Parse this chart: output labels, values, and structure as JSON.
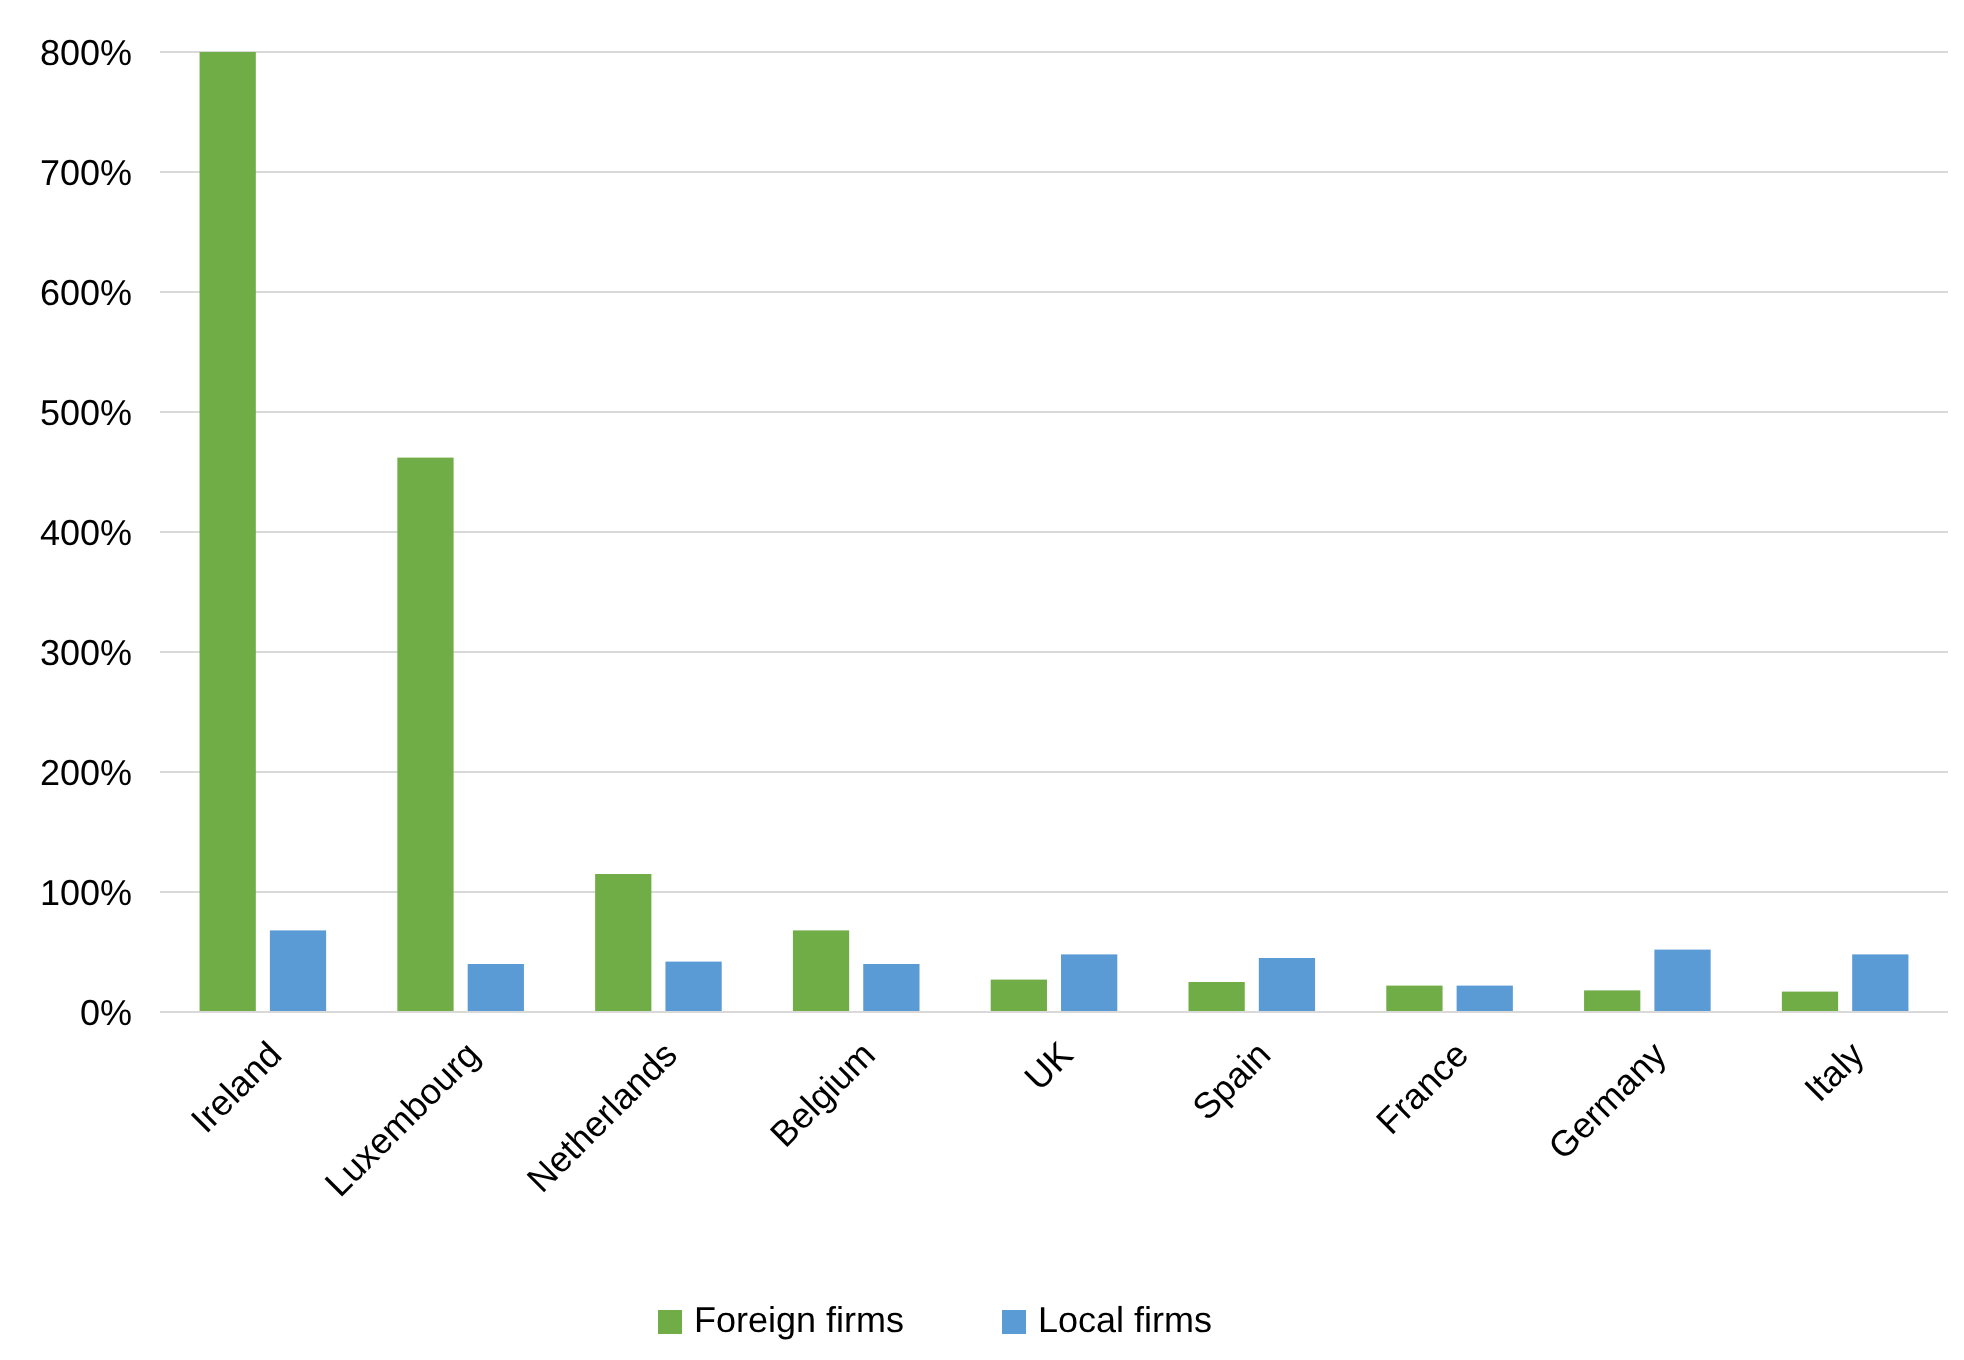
{
  "chart_data": {
    "type": "bar",
    "categories": [
      "Ireland",
      "Luxembourg",
      "Netherlands",
      "Belgium",
      "UK",
      "Spain",
      "France",
      "Germany",
      "Italy"
    ],
    "series": [
      {
        "name": "Foreign firms",
        "color": "#70ad47",
        "values": [
          800,
          462,
          115,
          68,
          27,
          25,
          22,
          18,
          17
        ]
      },
      {
        "name": "Local firms",
        "color": "#5b9bd5",
        "values": [
          68,
          40,
          42,
          40,
          48,
          45,
          22,
          52,
          48
        ]
      }
    ],
    "ylim": [
      0,
      800
    ],
    "yticks": [
      {
        "value": 0,
        "label": "0%"
      },
      {
        "value": 100,
        "label": "100%"
      },
      {
        "value": 200,
        "label": "200%"
      },
      {
        "value": 300,
        "label": "300%"
      },
      {
        "value": 400,
        "label": "400%"
      },
      {
        "value": 500,
        "label": "500%"
      },
      {
        "value": 600,
        "label": "600%"
      },
      {
        "value": 700,
        "label": "700%"
      },
      {
        "value": 800,
        "label": "800%"
      }
    ],
    "grid": "y",
    "legend": "bottom"
  }
}
